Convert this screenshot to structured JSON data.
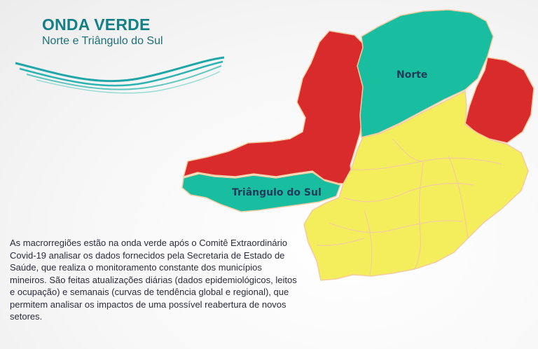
{
  "header": {
    "title": "ONDA VERDE",
    "subtitle": "Norte e Triângulo do Sul"
  },
  "map": {
    "labels": {
      "norte": "Norte",
      "triangulo_do_sul": "Triângulo do Sul"
    },
    "colors": {
      "green": "#19bda0",
      "red": "#d92b2b",
      "yellow": "#f4ee5c",
      "border": "#f4cba0"
    }
  },
  "body": {
    "text": "As macrorregiões estão na onda verde após o Comitê Extraordinário Covid-19 analisar os dados fornecidos pela Secretaria de Estado de Saúde, que realiza o monitoramento constante dos municípios mineiros. São feitas atualizações diárias (dados epidemiológicos, leitos e ocupação) e semanais (curvas de tendência global e regional), que permitem analisar os impactos de uma possível reabertura de novos setores."
  }
}
